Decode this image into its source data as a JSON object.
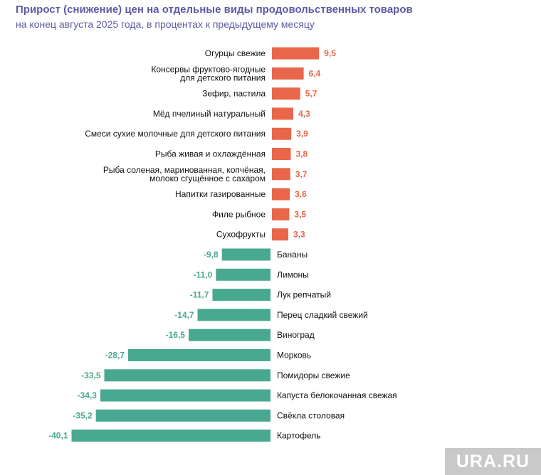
{
  "chart_data": {
    "type": "bar",
    "orientation": "horizontal",
    "title": "Прирост (снижение) цен на отдельные виды продовольственных товаров",
    "subtitle": "на конец августа 2025 года, в процентах к предыдущему месяцу",
    "categories": [
      [
        "Огурцы свежие"
      ],
      [
        "Консервы фруктово-ягодные",
        "для детского питания"
      ],
      [
        "Зефир, пастила"
      ],
      [
        "Мёд пчелиный натуральный"
      ],
      [
        "Смеси сухие молочные для детского питания"
      ],
      [
        "Рыба живая и охлаждённая"
      ],
      [
        "Рыба соленая, маринованная, копчёная,",
        "молоко сгущённое с сахаром"
      ],
      [
        "Напитки газированные"
      ],
      [
        "Филе рыбное"
      ],
      [
        "Сухофрукты"
      ],
      [
        "Бананы"
      ],
      [
        "Лимоны"
      ],
      [
        "Лук репчатый"
      ],
      [
        "Перец сладкий свежий"
      ],
      [
        "Виноград"
      ],
      [
        "Морковь"
      ],
      [
        "Помидоры свежие"
      ],
      [
        "Капуста белокочанная свежая"
      ],
      [
        "Свёкла столовая"
      ],
      [
        "Картофель"
      ]
    ],
    "values": [
      9.5,
      6.4,
      5.7,
      4.3,
      3.9,
      3.8,
      3.7,
      3.6,
      3.5,
      3.3,
      -9.8,
      -11.0,
      -11.7,
      -14.7,
      -16.5,
      -28.7,
      -33.5,
      -34.3,
      -35.2,
      -40.1
    ],
    "value_labels": [
      "9,5",
      "6,4",
      "5,7",
      "4,3",
      "3,9",
      "3,8",
      "3,7",
      "3,6",
      "3,5",
      "3,3",
      "-9,8",
      "-11,0",
      "-11,7",
      "-14,7",
      "-16,5",
      "-28,7",
      "-33,5",
      "-34,3",
      "-35,2",
      "-40,1"
    ],
    "colors": {
      "positive": "#e8664a",
      "negative": "#48a890"
    },
    "grid": false,
    "legend": "none"
  },
  "watermark": {
    "text": "URA.RU"
  },
  "colors": {
    "title": "#5b5ba6",
    "watermark_bg": "#c9c9c9"
  }
}
